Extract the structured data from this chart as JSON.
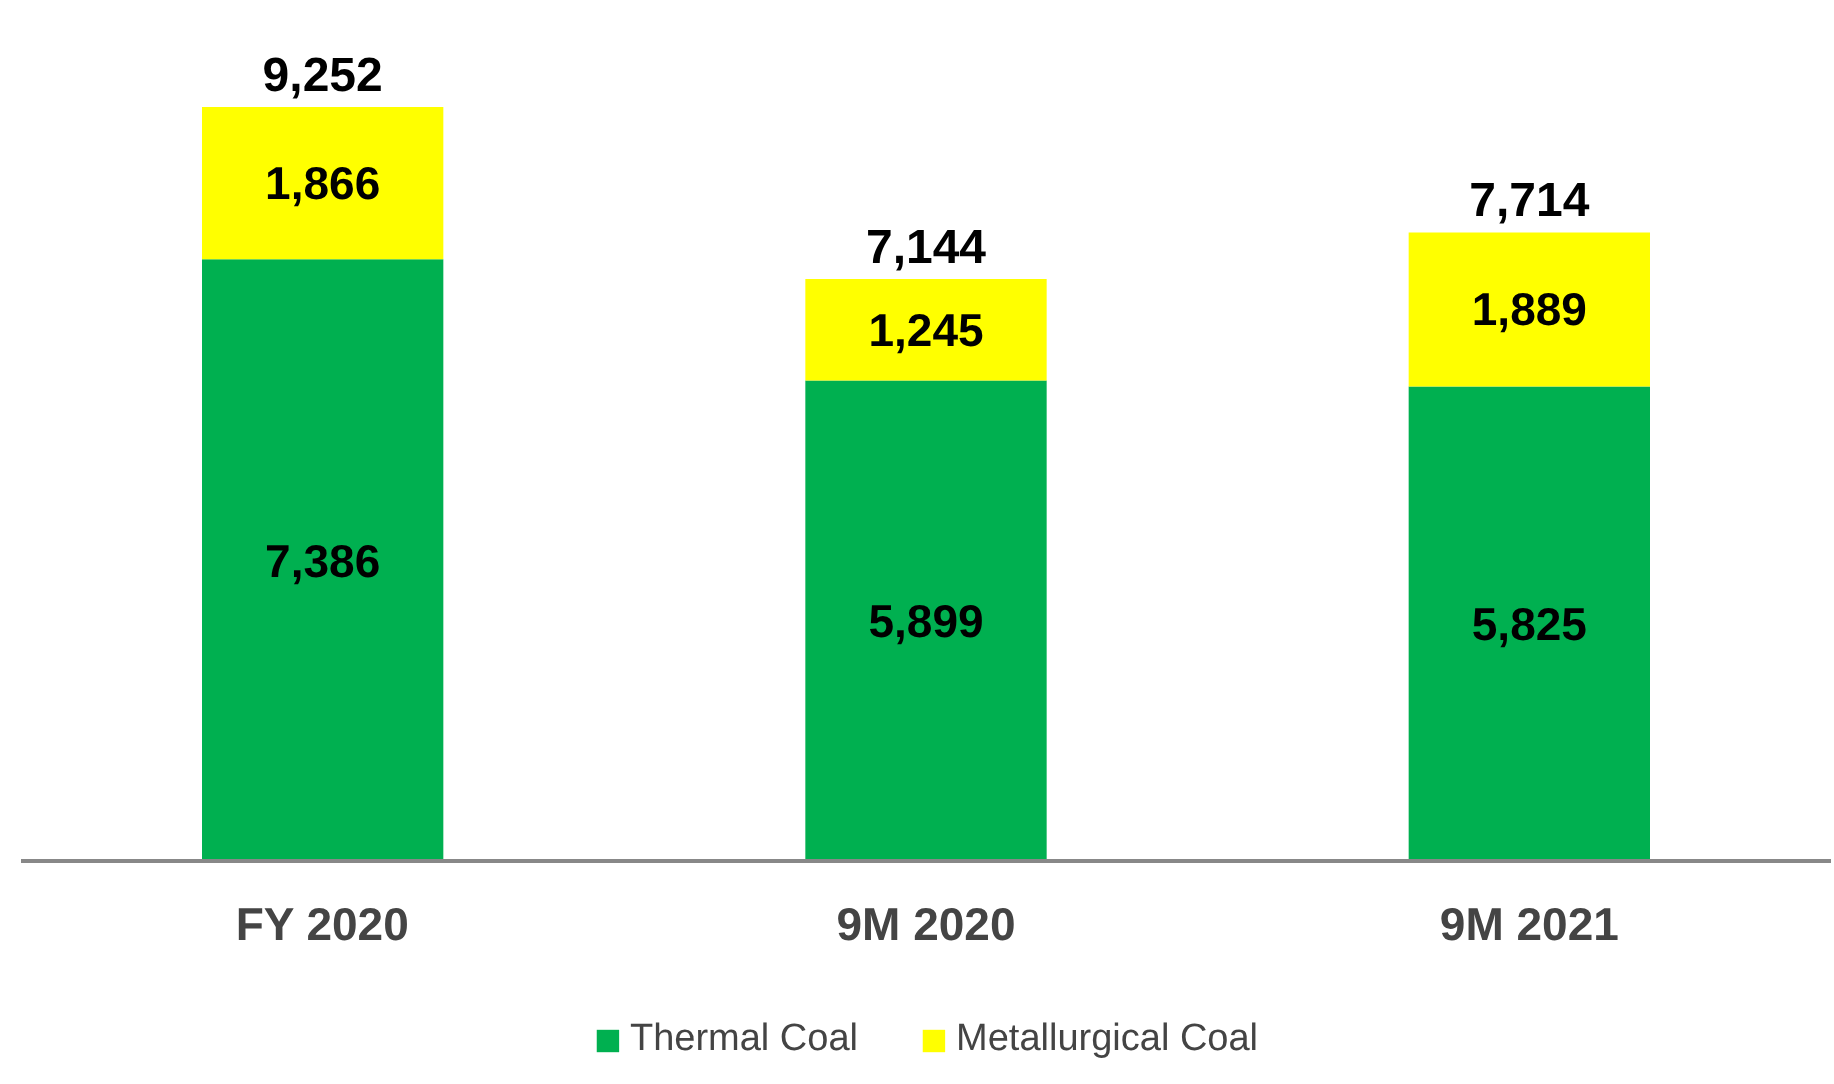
{
  "chart_data": {
    "type": "bar",
    "stacked": true,
    "legend": "bottom",
    "categories": [
      "FY 2020",
      "9M 2020",
      "9M 2021"
    ],
    "series": [
      {
        "name": "Thermal Coal",
        "color": "#00b050",
        "values": [
          7386,
          5899,
          5825
        ],
        "value_labels": [
          "7,386",
          "5,899",
          "5,825"
        ]
      },
      {
        "name": "Metallurgical Coal",
        "color": "#ffff00",
        "values": [
          1866,
          1245,
          1889
        ],
        "value_labels": [
          "1,866",
          "1,245",
          "1,889"
        ]
      }
    ],
    "totals": [
      "9,252",
      "7,144",
      "7,714"
    ]
  }
}
